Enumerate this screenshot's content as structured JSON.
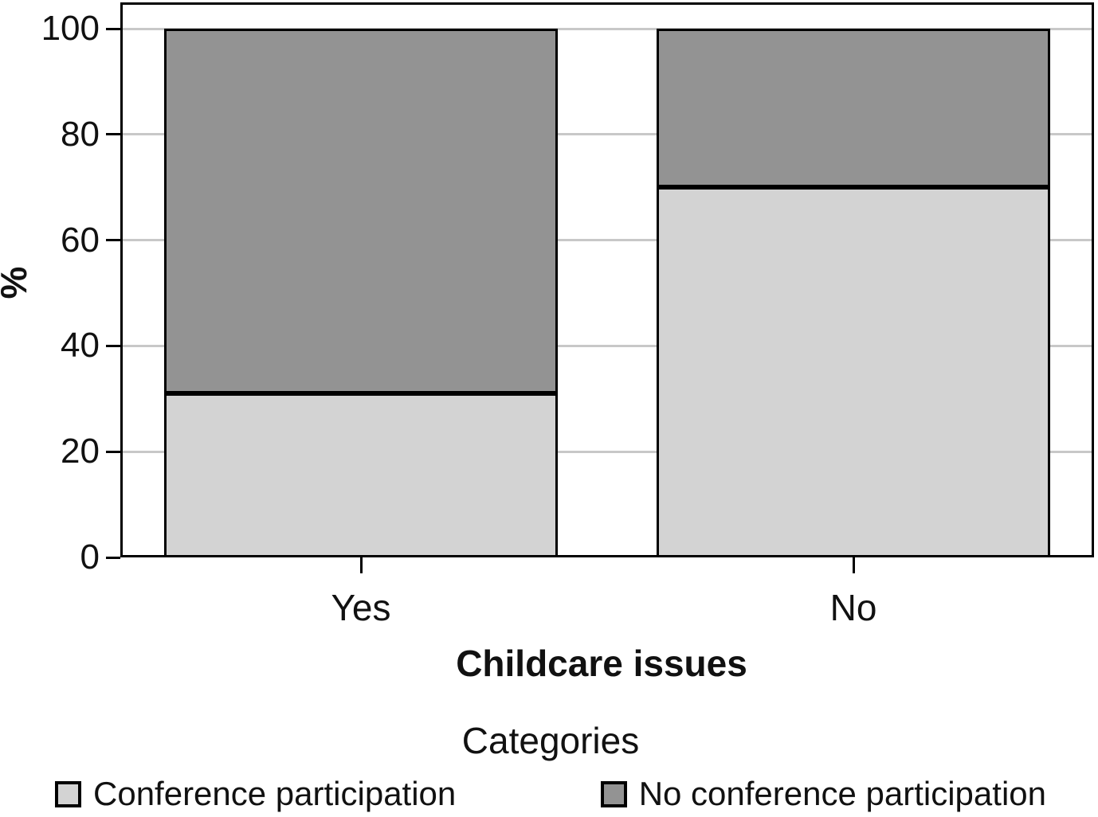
{
  "chart_data": {
    "type": "bar",
    "stacked": true,
    "orientation": "vertical",
    "title": "",
    "xlabel": "Childcare issues",
    "ylabel": "%",
    "legend_title": "Categories",
    "legend_position": "bottom",
    "categories": [
      "Yes",
      "No"
    ],
    "series": [
      {
        "name": "Conference participation",
        "color": "#d3d3d3",
        "values": [
          31,
          70
        ]
      },
      {
        "name": "No conference participation",
        "color": "#939393",
        "values": [
          69,
          30
        ]
      }
    ],
    "ylim": [
      0,
      105
    ],
    "yticks": [
      0,
      20,
      40,
      60,
      80,
      100
    ],
    "grid": true,
    "gridline_color": "#c8c8c8",
    "bar_border_color": "#000000"
  }
}
